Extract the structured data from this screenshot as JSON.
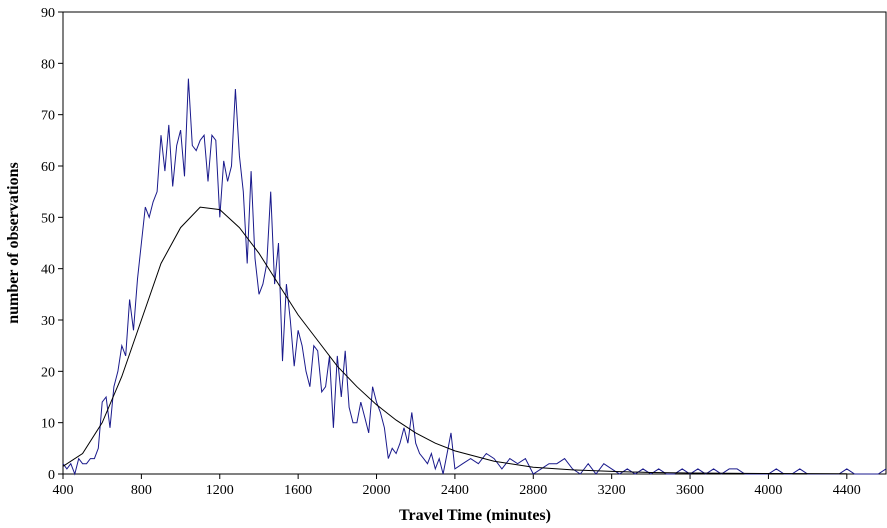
{
  "chart_data": {
    "type": "line",
    "xlabel": "Travel Time (minutes)",
    "ylabel": "number of observations",
    "xlim": [
      400,
      4600
    ],
    "ylim": [
      0,
      90
    ],
    "xticks": [
      400,
      800,
      1200,
      1600,
      2000,
      2400,
      2800,
      3200,
      3600,
      4000,
      4400
    ],
    "yticks": [
      0,
      10,
      20,
      30,
      40,
      50,
      60,
      70,
      80,
      90
    ],
    "series": [
      {
        "color": "#1a1a8c",
        "x": [
          400,
          420,
          440,
          460,
          480,
          500,
          520,
          540,
          560,
          580,
          600,
          620,
          640,
          660,
          680,
          700,
          720,
          740,
          760,
          780,
          800,
          820,
          840,
          860,
          880,
          900,
          920,
          940,
          960,
          980,
          1000,
          1020,
          1040,
          1060,
          1080,
          1100,
          1120,
          1140,
          1160,
          1180,
          1200,
          1220,
          1240,
          1260,
          1280,
          1300,
          1320,
          1340,
          1360,
          1380,
          1400,
          1420,
          1440,
          1460,
          1480,
          1500,
          1520,
          1540,
          1560,
          1580,
          1600,
          1620,
          1640,
          1660,
          1680,
          1700,
          1720,
          1740,
          1760,
          1780,
          1800,
          1820,
          1840,
          1860,
          1880,
          1900,
          1920,
          1940,
          1960,
          1980,
          2000,
          2020,
          2040,
          2060,
          2080,
          2100,
          2120,
          2140,
          2160,
          2180,
          2200,
          2220,
          2240,
          2260,
          2280,
          2300,
          2320,
          2340,
          2360,
          2380,
          2400,
          2440,
          2480,
          2520,
          2560,
          2600,
          2640,
          2680,
          2720,
          2760,
          2800,
          2840,
          2880,
          2920,
          2960,
          3000,
          3040,
          3080,
          3120,
          3160,
          3200,
          3240,
          3280,
          3320,
          3360,
          3400,
          3440,
          3480,
          3520,
          3560,
          3600,
          3640,
          3680,
          3720,
          3760,
          3800,
          3840,
          3880,
          3920,
          3960,
          4000,
          4040,
          4080,
          4120,
          4160,
          4200,
          4240,
          4280,
          4320,
          4360,
          4400,
          4440,
          4480,
          4520,
          4560,
          4600
        ],
        "values": [
          2,
          1,
          2,
          0,
          3,
          2,
          2,
          3,
          3,
          5,
          14,
          15,
          9,
          17,
          20,
          25,
          23,
          34,
          28,
          38,
          45,
          52,
          50,
          53,
          55,
          66,
          59,
          68,
          56,
          64,
          67,
          58,
          77,
          64,
          63,
          65,
          66,
          57,
          66,
          65,
          50,
          61,
          57,
          60,
          75,
          62,
          55,
          41,
          59,
          42,
          35,
          37,
          41,
          55,
          37,
          45,
          22,
          37,
          30,
          21,
          28,
          25,
          20,
          17,
          25,
          24,
          16,
          17,
          23,
          9,
          23,
          15,
          24,
          13,
          10,
          10,
          14,
          11,
          8,
          17,
          14,
          12,
          9,
          3,
          5,
          4,
          6,
          9,
          6,
          12,
          6,
          4,
          3,
          2,
          4,
          1,
          3,
          0,
          4,
          8,
          1,
          2,
          3,
          2,
          4,
          3,
          1,
          3,
          2,
          3,
          0,
          1,
          2,
          2,
          3,
          1,
          0,
          2,
          0,
          2,
          1,
          0,
          1,
          0,
          1,
          0,
          1,
          0,
          0,
          1,
          0,
          1,
          0,
          1,
          0,
          1,
          1,
          0,
          0,
          0,
          0,
          1,
          0,
          0,
          1,
          0,
          0,
          0,
          0,
          0,
          1,
          0,
          0,
          0,
          0,
          1
        ]
      },
      {
        "color": "#000000",
        "x": [
          400,
          500,
          600,
          700,
          800,
          900,
          1000,
          1100,
          1200,
          1300,
          1400,
          1500,
          1600,
          1700,
          1800,
          1900,
          2000,
          2100,
          2200,
          2300,
          2400,
          2600,
          2800,
          3000,
          3200,
          3400,
          3600,
          4000,
          4400
        ],
        "values": [
          1.5,
          4,
          10,
          19,
          30,
          41,
          48,
          52,
          51.5,
          48,
          43,
          37,
          31,
          26,
          21,
          17,
          13.5,
          10.5,
          8,
          6,
          4.5,
          2.5,
          1.3,
          0.8,
          0.5,
          0.3,
          0.2,
          0.1,
          0.05
        ]
      }
    ]
  }
}
